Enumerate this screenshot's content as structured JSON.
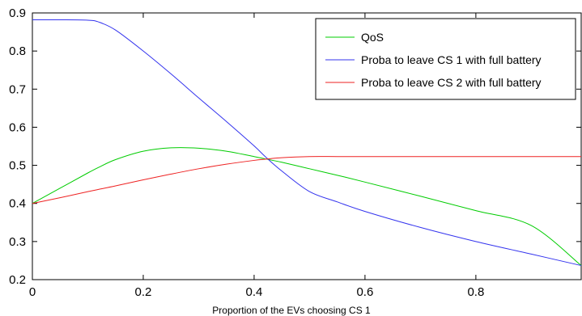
{
  "chart_data": {
    "type": "line",
    "title": "",
    "xlabel": "Proportion of the EVs choosing CS 1",
    "ylabel": "",
    "xlim": [
      0,
      0.99
    ],
    "ylim": [
      0.2,
      0.9
    ],
    "xticks": [
      0,
      0.2,
      0.4,
      0.6,
      0.8
    ],
    "xtick_labels": [
      "0",
      "0.2",
      "0.4",
      "0.6",
      "0.8"
    ],
    "yticks": [
      0.2,
      0.3,
      0.4,
      0.5,
      0.6,
      0.7,
      0.8,
      0.9
    ],
    "ytick_labels": [
      "0.2",
      "0.3",
      "0.4",
      "0.5",
      "0.6",
      "0.7",
      "0.8",
      "0.9"
    ],
    "grid": false,
    "legend_position": "top-right",
    "x": [
      0,
      0.05,
      0.1,
      0.12,
      0.15,
      0.2,
      0.25,
      0.3,
      0.35,
      0.4,
      0.42,
      0.45,
      0.5,
      0.55,
      0.6,
      0.7,
      0.8,
      0.9,
      0.99
    ],
    "series": [
      {
        "name": "QoS",
        "color": "#00cc00",
        "values": [
          0.4,
          0.44,
          0.48,
          0.495,
          0.515,
          0.537,
          0.546,
          0.545,
          0.537,
          0.523,
          0.517,
          0.508,
          0.491,
          0.474,
          0.456,
          0.419,
          0.381,
          0.342,
          0.237
        ]
      },
      {
        "name": "Proba to leave CS 1 with full battery",
        "color": "#3333ee",
        "values": [
          0.882,
          0.882,
          0.881,
          0.876,
          0.855,
          0.8,
          0.74,
          0.677,
          0.615,
          0.551,
          0.523,
          0.485,
          0.431,
          0.404,
          0.379,
          0.337,
          0.3,
          0.267,
          0.237
        ]
      },
      {
        "name": "Proba to leave CS 2 with full battery",
        "color": "#ee2222",
        "values": [
          0.4,
          0.415,
          0.431,
          0.437,
          0.446,
          0.462,
          0.477,
          0.491,
          0.503,
          0.513,
          0.516,
          0.52,
          0.523,
          0.523,
          0.523,
          0.523,
          0.523,
          0.523,
          0.523
        ]
      }
    ]
  }
}
